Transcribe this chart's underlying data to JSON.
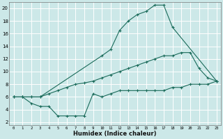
{
  "xlabel": "Humidex (Indice chaleur)",
  "ylabel": "",
  "bg_color": "#cce8e8",
  "grid_color": "#ffffff",
  "line_color": "#1a6b5a",
  "xlim": [
    -0.5,
    23.5
  ],
  "ylim": [
    1.5,
    21
  ],
  "xticks": [
    0,
    1,
    2,
    3,
    4,
    5,
    6,
    7,
    8,
    9,
    10,
    11,
    12,
    13,
    14,
    15,
    16,
    17,
    18,
    19,
    20,
    21,
    22,
    23
  ],
  "yticks": [
    2,
    4,
    6,
    8,
    10,
    12,
    14,
    16,
    18,
    20
  ],
  "curve_top_x": [
    0,
    1,
    2,
    3,
    10,
    11,
    12,
    13,
    14,
    15,
    16,
    17,
    18,
    23
  ],
  "curve_top_y": [
    6,
    6,
    6,
    6,
    12.5,
    13.5,
    16.5,
    18.0,
    19.0,
    19.5,
    20.5,
    20.5,
    17.0,
    8.5
  ],
  "curve_mid_x": [
    0,
    1,
    2,
    3,
    4,
    5,
    6,
    7,
    8,
    9,
    10,
    11,
    12,
    13,
    14,
    15,
    16,
    17,
    18,
    19,
    20,
    21,
    22,
    23
  ],
  "curve_mid_y": [
    6,
    6,
    6,
    6,
    6.5,
    7,
    7.5,
    8,
    8.2,
    8.5,
    9,
    9.5,
    10,
    10.5,
    11,
    11.5,
    12,
    12.5,
    12.5,
    13,
    13,
    10.5,
    9,
    8.5
  ],
  "curve_bot_x": [
    0,
    1,
    2,
    3,
    4,
    5,
    6,
    7,
    8,
    9,
    10,
    11,
    12,
    13,
    14,
    15,
    16,
    17,
    18,
    19,
    20,
    21,
    22,
    23
  ],
  "curve_bot_y": [
    6,
    6,
    5,
    4.5,
    4.5,
    3.0,
    3.0,
    3.0,
    3.0,
    6.5,
    6,
    6.5,
    7,
    7,
    7,
    7,
    7,
    7,
    7.5,
    7.5,
    8,
    8,
    8,
    8.5
  ],
  "pink_lines_y": [
    4,
    8,
    12,
    16,
    20
  ]
}
